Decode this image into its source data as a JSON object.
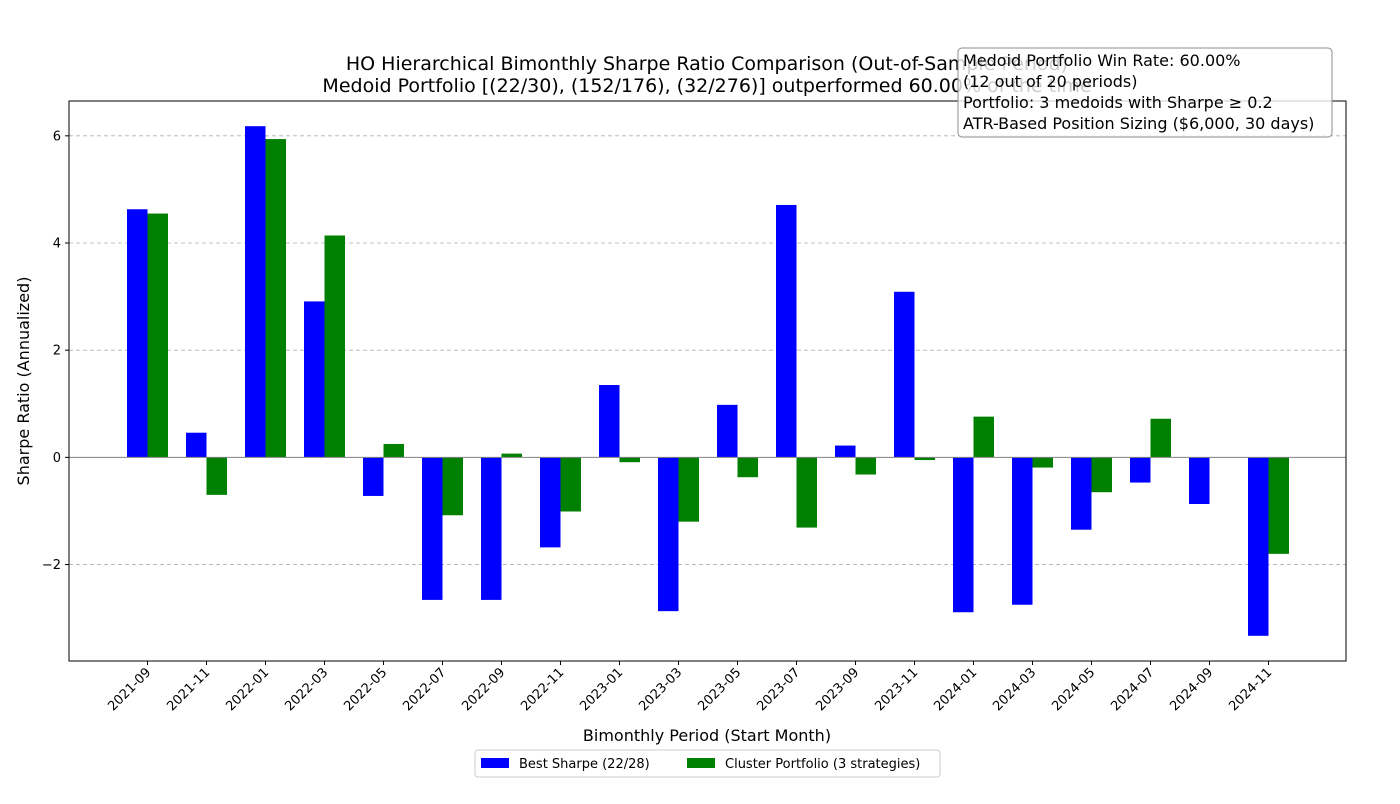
{
  "chart_data": {
    "type": "bar",
    "title_line1": "HO Hierarchical Bimonthly Sharpe Ratio Comparison (Out-of-Sample Period)",
    "title_line2": "Medoid Portfolio [(22/30), (152/176), (32/276)] outperformed 60.00% of the time",
    "xlabel": "Bimonthly Period (Start Month)",
    "ylabel": "Sharpe Ratio (Annualized)",
    "ylim": [
      -3.8,
      6.65
    ],
    "yticks": [
      -2,
      0,
      2,
      4,
      6
    ],
    "ytick_labels": [
      "−2",
      "0",
      "2",
      "4",
      "6"
    ],
    "grid": "horizontal dashed",
    "legend_position": "bottom-center",
    "categories": [
      "2021-09",
      "2021-11",
      "2022-01",
      "2022-03",
      "2022-05",
      "2022-07",
      "2022-09",
      "2022-11",
      "2023-01",
      "2023-03",
      "2023-05",
      "2023-07",
      "2023-09",
      "2023-11",
      "2024-01",
      "2024-03",
      "2024-05",
      "2024-07",
      "2024-09",
      "2024-11"
    ],
    "series": [
      {
        "name": "Best Sharpe (22/28)",
        "color": "#0000ff",
        "values": [
          4.63,
          0.46,
          6.18,
          2.91,
          -0.72,
          -2.66,
          -2.66,
          -1.68,
          1.35,
          -2.87,
          0.98,
          4.71,
          0.22,
          3.09,
          -2.89,
          -2.75,
          -1.35,
          -0.47,
          -0.87,
          -3.33
        ]
      },
      {
        "name": "Cluster Portfolio (3 strategies)",
        "color": "#008000",
        "values": [
          4.55,
          -0.7,
          5.94,
          4.14,
          0.25,
          -1.08,
          0.07,
          -1.01,
          -0.09,
          -1.2,
          -0.37,
          -1.31,
          -0.32,
          -0.05,
          0.76,
          -0.19,
          -0.65,
          0.72,
          0.0,
          -1.8
        ]
      }
    ],
    "annotation_lines": [
      "Medoid Portfolio Win Rate: 60.00%",
      "(12 out of 20 periods)",
      "Portfolio: 3 medoids with Sharpe ≥ 0.2",
      "ATR-Based Position Sizing ($6,000, 30 days)"
    ]
  }
}
